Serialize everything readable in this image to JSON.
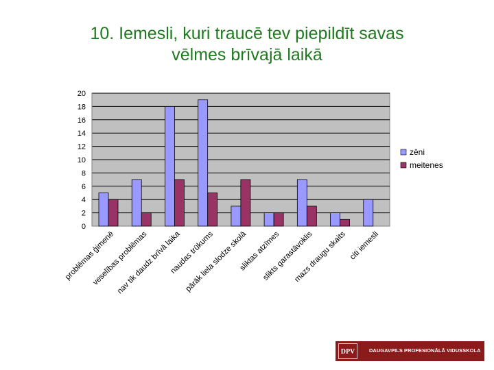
{
  "title_line1": "10. Iemesli, kuri traucē tev piepildīt savas",
  "title_line2": "vēlmes brīvajā laikā",
  "logo": {
    "mark": "DPV",
    "text": "DAUGAVPILS PROFESIONĀLĀ VIDUSSKOLA"
  },
  "colors": {
    "zeni": "#9999ff",
    "meitenes": "#993366",
    "plot_bg": "#c0c0c0",
    "title": "#1e7a1e",
    "logo_bg": "#8b1a1a"
  },
  "chart_data": {
    "type": "bar",
    "categories": [
      "problēmas ģimenē",
      "veselības problēmas",
      "nav tik daudz brīvā laika",
      "naudas trūkums",
      "pārāk liela slodze skolā",
      "sliktas atzīmes",
      "slikts garastāvoklis",
      "mazs draugu skaits",
      "citi iemesli"
    ],
    "series": [
      {
        "name": "zēni",
        "values": [
          5,
          7,
          18,
          19,
          3,
          2,
          7,
          2,
          4
        ]
      },
      {
        "name": "meitenes",
        "values": [
          4,
          2,
          7,
          5,
          7,
          2,
          3,
          1,
          0
        ]
      }
    ],
    "ylim": [
      0,
      20
    ],
    "yticks": [
      "0",
      "2",
      "4",
      "6",
      "8",
      "10",
      "12",
      "14",
      "16",
      "18",
      "20"
    ],
    "grid": true,
    "legend": "right"
  }
}
